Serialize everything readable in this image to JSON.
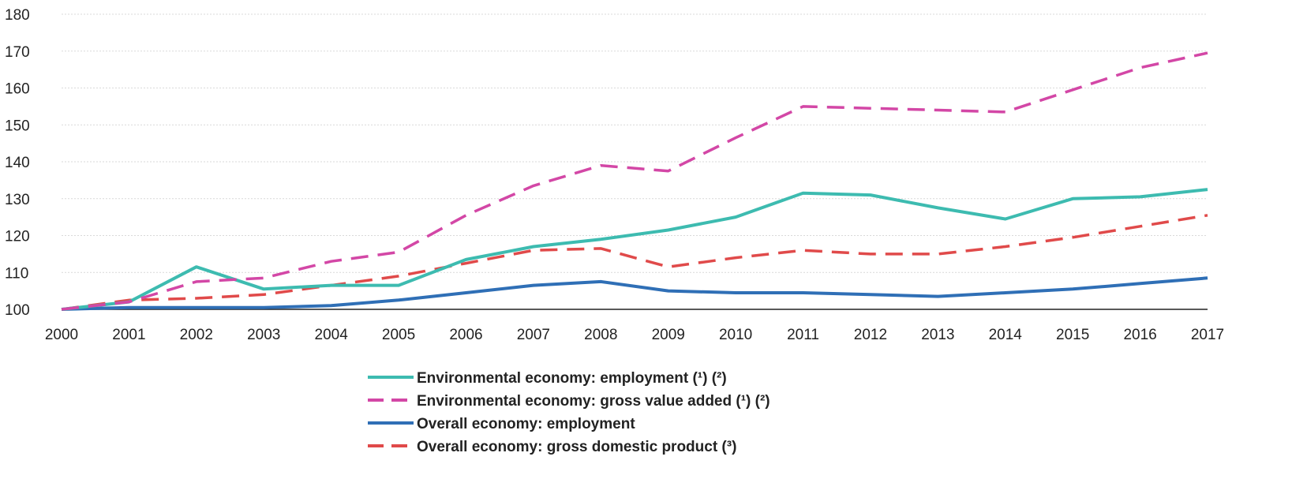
{
  "chart_data": {
    "type": "line",
    "title": "",
    "xlabel": "",
    "ylabel": "",
    "x": [
      "2000",
      "2001",
      "2002",
      "2003",
      "2004",
      "2005",
      "2006",
      "2007",
      "2008",
      "2009",
      "2010",
      "2011",
      "2012",
      "2013",
      "2014",
      "2015",
      "2016",
      "2017"
    ],
    "ylim": [
      100,
      180
    ],
    "yticks": [
      100,
      110,
      120,
      130,
      140,
      150,
      160,
      170,
      180
    ],
    "grid": true,
    "legend_position": "bottom",
    "series": [
      {
        "name": "Environmental economy: employment (¹) (²)",
        "color": "#3dbbb0",
        "style": "solid",
        "values": [
          100,
          102,
          111.5,
          105.5,
          106.5,
          106.5,
          113.5,
          117,
          119,
          121.5,
          125,
          131.5,
          131,
          127.5,
          124.5,
          130,
          130.5,
          132.5
        ]
      },
      {
        "name": "Environmental economy: gross value added (¹) (²)",
        "color": "#d347a6",
        "style": "dashed",
        "values": [
          100,
          102,
          107.5,
          108.5,
          113,
          115.5,
          125.5,
          133.5,
          139,
          137.5,
          146.5,
          155,
          154.5,
          154,
          153.5,
          159.5,
          165.5,
          169.5
        ]
      },
      {
        "name": "Overall economy: employment",
        "color": "#2f6fb6",
        "style": "solid",
        "values": [
          100,
          100.5,
          100.5,
          100.5,
          101,
          102.5,
          104.5,
          106.5,
          107.5,
          105,
          104.5,
          104.5,
          104,
          103.5,
          104.5,
          105.5,
          107,
          108.5
        ]
      },
      {
        "name": "Overall economy: gross domestic product (³)",
        "color": "#e04a4a",
        "style": "dashed",
        "values": [
          100,
          102.5,
          103,
          104,
          106.5,
          109,
          112.5,
          116,
          116.5,
          111.5,
          114,
          116,
          115,
          115,
          117,
          119.5,
          122.5,
          125.5
        ]
      }
    ]
  }
}
